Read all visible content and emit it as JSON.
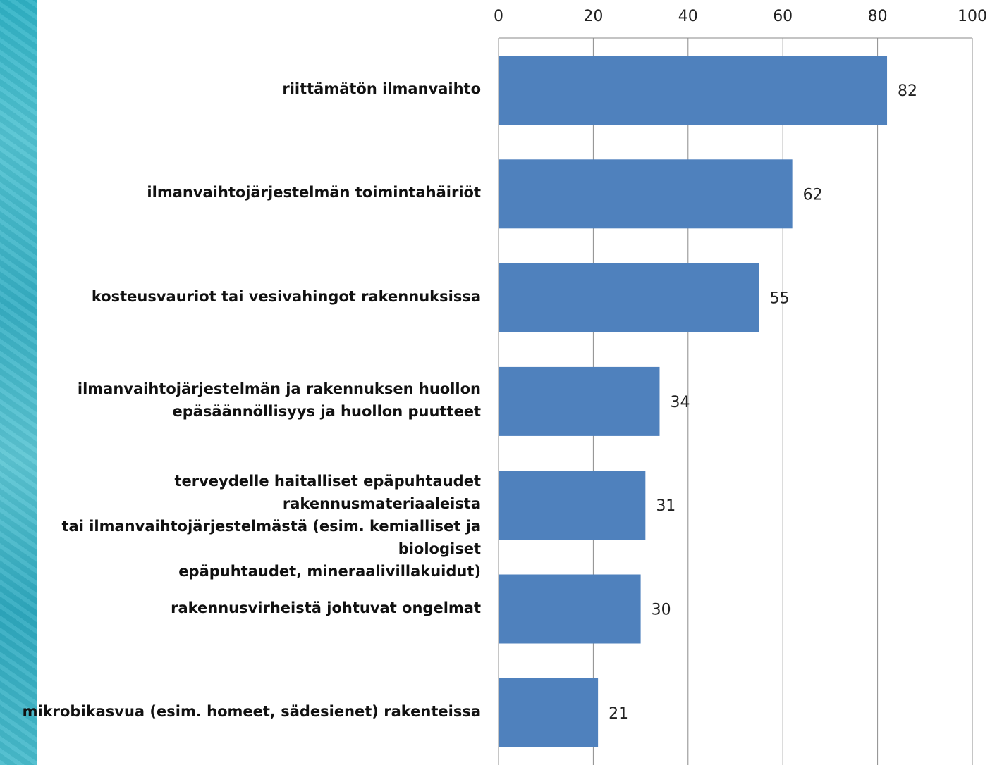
{
  "chart_data": {
    "type": "bar",
    "orientation": "horizontal",
    "categories": [
      "riittämätön ilmanvaihto",
      "ilmanvaihtojärjestelmän toimintahäiriöt",
      "kosteusvauriot tai vesivahingot rakennuksissa",
      "ilmanvaihtojärjestelmän ja rakennuksen huollon\nepäsäännöllisyys ja huollon puutteet",
      "terveydelle haitalliset epäpuhtaudet rakennusmateriaaleista\ntai ilmanvaihtojärjestelmästä  (esim. kemialliset ja biologiset\nepäpuhtaudet, mineraalivillakuidut)",
      "rakennusvirheistä johtuvat ongelmat",
      "mikrobikasvua (esim. homeet, sädesienet) rakenteissa"
    ],
    "values": [
      82,
      62,
      55,
      34,
      31,
      30,
      21
    ],
    "xlim": [
      0,
      100
    ],
    "xticks": [
      0,
      20,
      40,
      60,
      80,
      100
    ],
    "x_axis_position": "top",
    "grid": true,
    "bar_color": "#4f81bd",
    "title": "",
    "xlabel": "",
    "ylabel": ""
  }
}
